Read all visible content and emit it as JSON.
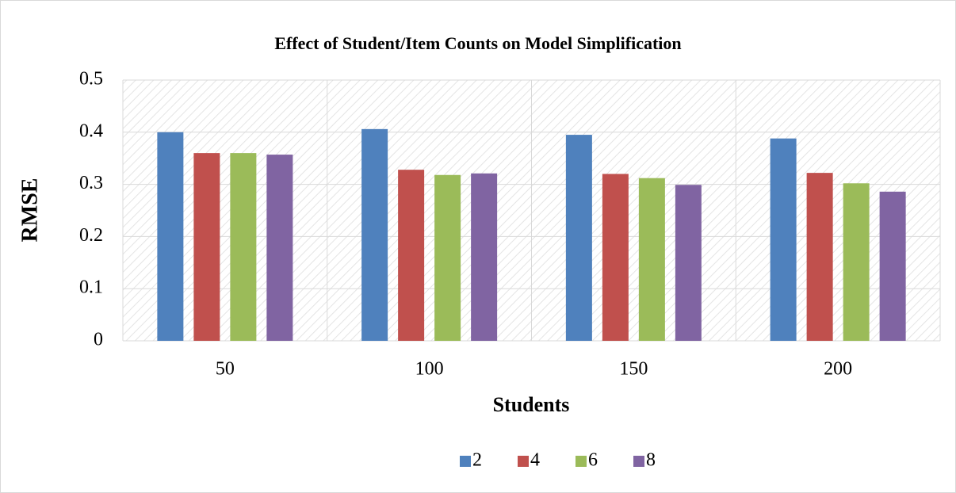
{
  "chart_data": {
    "type": "bar",
    "title": "Effect of Student/Item Counts on Model Simplification",
    "x_label": "Students",
    "y_label": "RMSE",
    "categories": [
      "50",
      "100",
      "150",
      "200"
    ],
    "series": [
      {
        "name": "2",
        "color": "#4f81bd",
        "values": [
          0.4,
          0.406,
          0.395,
          0.388
        ]
      },
      {
        "name": "4",
        "color": "#c0504d",
        "values": [
          0.36,
          0.328,
          0.32,
          0.322
        ]
      },
      {
        "name": "6",
        "color": "#9bbb59",
        "values": [
          0.36,
          0.318,
          0.312,
          0.302
        ]
      },
      {
        "name": "8",
        "color": "#8064a2",
        "values": [
          0.357,
          0.321,
          0.299,
          0.286
        ]
      }
    ],
    "ylim": [
      0,
      0.5
    ],
    "yticks": [
      0,
      0.1,
      0.2,
      0.3,
      0.4,
      0.5
    ],
    "grid": true,
    "legend": "bottom"
  }
}
